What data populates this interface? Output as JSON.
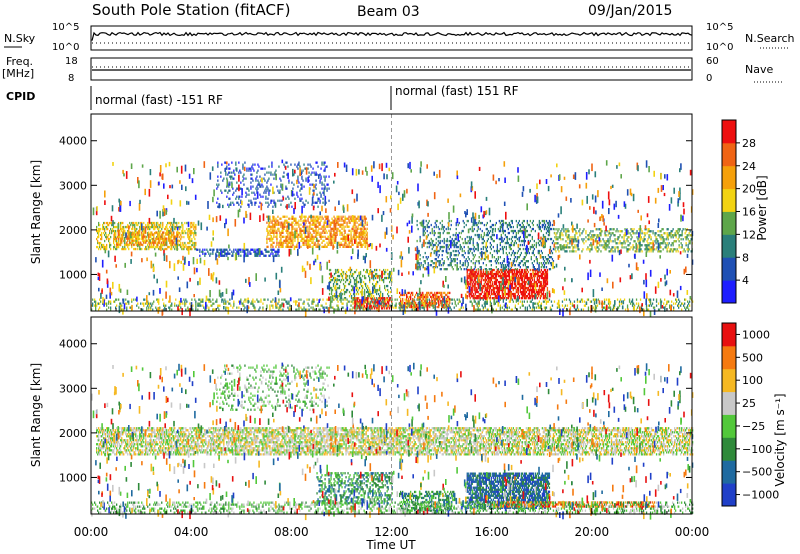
{
  "header": {
    "station": "South Pole Station (fitACF)",
    "beam": "Beam 03",
    "date": "09/Jan/2015"
  },
  "strip_labels": {
    "nsky": "N.Sky",
    "nsearch": "N.Search",
    "freq_line1": "Freq.",
    "freq_line2": "[MHz]",
    "nave": "Nave",
    "cpid": "CPID",
    "exp_ticks_left": [
      "10^5",
      "10^0"
    ],
    "exp_ticks_right": [
      "10^5",
      "10^0"
    ],
    "freq_ticks": [
      "18",
      "8"
    ],
    "nave_ticks": [
      "60",
      "0"
    ]
  },
  "cpid_segments": [
    {
      "label": "normal (fast) -151 RF",
      "start_hour": 0
    },
    {
      "label": "normal (fast) 151 RF",
      "start_hour": 12
    }
  ],
  "chart_data": [
    {
      "type": "heatmap",
      "title": "",
      "xlabel": "Time UT",
      "ylabel": "Slant Range [km]",
      "x_ticks": [
        "00:00",
        "04:00",
        "08:00",
        "12:00",
        "16:00",
        "20:00",
        "00:00"
      ],
      "x_range_hours": [
        0,
        24
      ],
      "y_ticks": [
        1000,
        2000,
        3000,
        4000
      ],
      "ylim": [
        180,
        4600
      ],
      "colorbar": {
        "label": "Power [dB]",
        "ticks": [
          "4",
          "8",
          "12",
          "16",
          "20",
          "24",
          "28"
        ],
        "colors": [
          "#1e1eff",
          "#1f50b4",
          "#2a7f7a",
          "#5ea64a",
          "#f2d312",
          "#f5a00a",
          "#f06414",
          "#ee0f0f"
        ]
      },
      "regions": [
        {
          "t0": 0.2,
          "t1": 4.2,
          "r0": 1550,
          "r1": 2150,
          "density": 0.45,
          "level": 4
        },
        {
          "t0": 1.0,
          "t1": 3.5,
          "r0": 1650,
          "r1": 1950,
          "density": 0.5,
          "level": 5
        },
        {
          "t0": 4.2,
          "t1": 7.5,
          "r0": 1400,
          "r1": 1550,
          "density": 0.5,
          "level": 1
        },
        {
          "t0": 7.0,
          "t1": 11.0,
          "r0": 1600,
          "r1": 2300,
          "density": 0.5,
          "level": 5
        },
        {
          "t0": 5.0,
          "t1": 9.5,
          "r0": 2500,
          "r1": 3500,
          "density": 0.16,
          "level": 1
        },
        {
          "t0": 9.5,
          "t1": 12.0,
          "r0": 450,
          "r1": 1100,
          "density": 0.35,
          "level": 3
        },
        {
          "t0": 10.5,
          "t1": 12.0,
          "r0": 220,
          "r1": 450,
          "density": 0.6,
          "level": 7
        },
        {
          "t0": 12.3,
          "t1": 14.3,
          "r0": 250,
          "r1": 600,
          "density": 0.6,
          "level": 6
        },
        {
          "t0": 15.0,
          "t1": 18.2,
          "r0": 450,
          "r1": 1100,
          "density": 0.7,
          "level": 7
        },
        {
          "t0": 13.0,
          "t1": 18.5,
          "r0": 1100,
          "r1": 2200,
          "density": 0.25,
          "level": 2
        },
        {
          "t0": 18.5,
          "t1": 24.0,
          "r0": 1500,
          "r1": 2000,
          "density": 0.35,
          "level": 3
        },
        {
          "t0": 0.0,
          "t1": 24.0,
          "r0": 190,
          "r1": 450,
          "density": 0.25,
          "level": 3
        }
      ]
    },
    {
      "type": "heatmap",
      "title": "",
      "xlabel": "Time UT",
      "ylabel": "Slant Range [km]",
      "x_ticks": [
        "00:00",
        "04:00",
        "08:00",
        "12:00",
        "16:00",
        "20:00",
        "00:00"
      ],
      "x_range_hours": [
        0,
        24
      ],
      "y_ticks": [
        1000,
        2000,
        3000,
        4000
      ],
      "ylim": [
        180,
        4600
      ],
      "colorbar": {
        "label": "Velocity [m s⁻¹]",
        "ticks": [
          "1000",
          "500",
          "100",
          "25",
          "−25",
          "−100",
          "−500",
          "−1000"
        ],
        "colors": [
          "#2040c8",
          "#1f6aa0",
          "#2f8a3a",
          "#52c83a",
          "#c8c8c8",
          "#f5b822",
          "#f57a10",
          "#e81010"
        ]
      },
      "regions": [
        {
          "t0": 0.2,
          "t1": 24.0,
          "r0": 1500,
          "r1": 2100,
          "density": 0.6,
          "level": 4
        },
        {
          "t0": 5.0,
          "t1": 9.5,
          "r0": 2500,
          "r1": 3500,
          "density": 0.15,
          "level": 3
        },
        {
          "t0": 9.0,
          "t1": 12.0,
          "r0": 400,
          "r1": 1100,
          "density": 0.35,
          "level": 2
        },
        {
          "t0": 12.3,
          "t1": 14.5,
          "r0": 250,
          "r1": 700,
          "density": 0.45,
          "level": 2
        },
        {
          "t0": 15.0,
          "t1": 18.3,
          "r0": 300,
          "r1": 1100,
          "density": 0.7,
          "level": 1
        },
        {
          "t0": 16.0,
          "t1": 22.5,
          "r0": 330,
          "r1": 450,
          "density": 0.6,
          "level": 6
        },
        {
          "t0": 0.0,
          "t1": 24.0,
          "r0": 190,
          "r1": 420,
          "density": 0.3,
          "level": 3
        }
      ]
    }
  ]
}
